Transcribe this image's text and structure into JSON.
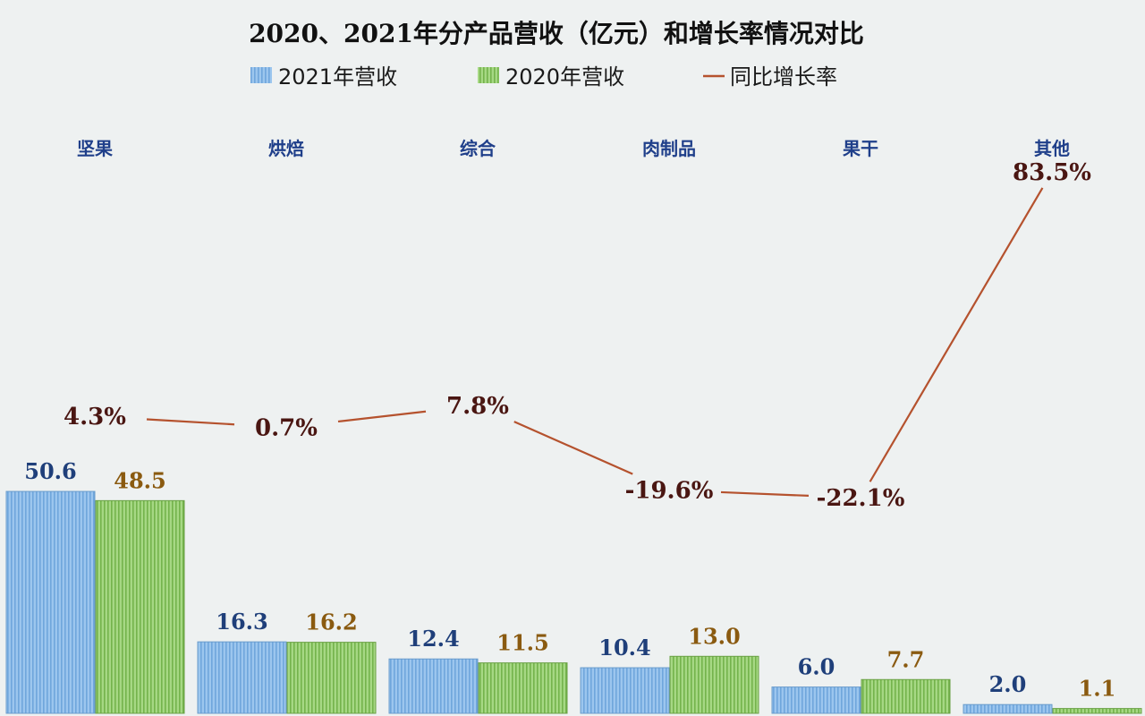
{
  "chart_data": {
    "type": "bar",
    "title": "2020、2021年分产品营收（亿元）和增长率情况对比",
    "categories": [
      "坚果",
      "烘焙",
      "综合",
      "肉制品",
      "果干",
      "其他"
    ],
    "series": [
      {
        "name": "2021年营收",
        "type": "bar",
        "values": [
          50.6,
          16.3,
          12.4,
          10.4,
          6.0,
          2.0
        ],
        "color": "#8fbde8",
        "label_color": "#1f3f7a"
      },
      {
        "name": "2020年营收",
        "type": "bar",
        "values": [
          48.5,
          16.2,
          11.5,
          13.0,
          7.7,
          1.1
        ],
        "color": "#8fcf6a",
        "label_color": "#8a5a10"
      },
      {
        "name": "同比增长率",
        "type": "line",
        "values": [
          4.3,
          0.7,
          7.8,
          -19.6,
          -22.1,
          83.5
        ],
        "color": "#b5522e",
        "label_color": "#4a1612"
      }
    ],
    "value_labels_2021": [
      "50.6",
      "16.3",
      "12.4",
      "10.4",
      "6.0",
      "2.0"
    ],
    "value_labels_2020": [
      "48.5",
      "16.2",
      "11.5",
      "13.0",
      "7.7",
      "1.1"
    ],
    "growth_labels": [
      "4.3%",
      "0.7%",
      "7.8%",
      "-19.6%",
      "-22.1%",
      "83.5%"
    ],
    "legend_position": "top",
    "category_label_position": "top",
    "grid": false
  },
  "legend": {
    "item_2021": "2021年营收",
    "item_2020": "2020年营收",
    "item_growth": "同比增长率"
  }
}
